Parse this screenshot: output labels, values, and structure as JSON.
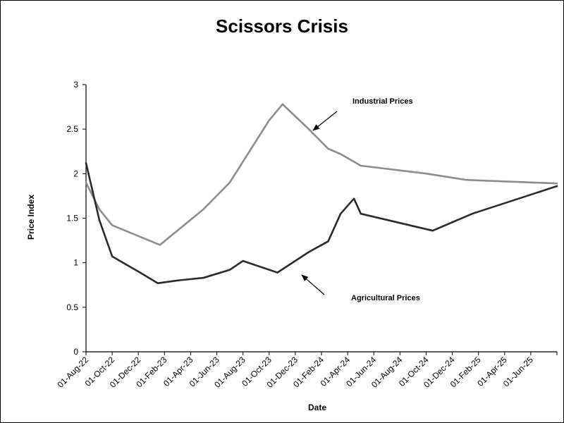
{
  "chart_data": {
    "type": "line",
    "title": "Scissors Crisis",
    "xlabel": "Date",
    "ylabel": "Price Index",
    "ylim": [
      0,
      3
    ],
    "yticks": [
      "0",
      "0.5",
      "1",
      "1.5",
      "2",
      "2.5",
      "3"
    ],
    "xticks": [
      "01-Aug-22",
      "01-Oct-22",
      "01-Dec-22",
      "01-Feb-23",
      "01-Apr-23",
      "01-Jun-23",
      "01-Aug-23",
      "01-Oct-23",
      "01-Dec-23",
      "01-Feb-24",
      "01-Apr-24",
      "01-Jun-24",
      "01-Aug-24",
      "01-Oct-24",
      "01-Dec-24",
      "01-Feb-25",
      "01-Apr-25",
      "01-Jun-25"
    ],
    "grid": false,
    "legend": "none",
    "series": [
      {
        "name": "Industrial Prices",
        "color": "#8c8c8c",
        "points": [
          {
            "x": "2022-08-01",
            "y": 1.9
          },
          {
            "x": "2022-09-01",
            "y": 1.6
          },
          {
            "x": "2022-10-01",
            "y": 1.42
          },
          {
            "x": "2023-01-20",
            "y": 1.2
          },
          {
            "x": "2023-05-01",
            "y": 1.6
          },
          {
            "x": "2023-07-01",
            "y": 1.9
          },
          {
            "x": "2023-10-01",
            "y": 2.6
          },
          {
            "x": "2023-11-01",
            "y": 2.78
          },
          {
            "x": "2024-01-01",
            "y": 2.5
          },
          {
            "x": "2024-02-15",
            "y": 2.28
          },
          {
            "x": "2024-03-15",
            "y": 2.22
          },
          {
            "x": "2024-05-01",
            "y": 2.09
          },
          {
            "x": "2024-10-01",
            "y": 2.0
          },
          {
            "x": "2025-01-01",
            "y": 1.93
          },
          {
            "x": "2025-07-31",
            "y": 1.89
          }
        ]
      },
      {
        "name": "Agricultural Prices",
        "color": "#2a2a2a",
        "points": [
          {
            "x": "2022-08-01",
            "y": 2.12
          },
          {
            "x": "2022-09-01",
            "y": 1.48
          },
          {
            "x": "2022-10-01",
            "y": 1.07
          },
          {
            "x": "2022-12-01",
            "y": 0.9
          },
          {
            "x": "2023-01-15",
            "y": 0.77
          },
          {
            "x": "2023-03-01",
            "y": 0.8
          },
          {
            "x": "2023-05-01",
            "y": 0.83
          },
          {
            "x": "2023-07-01",
            "y": 0.92
          },
          {
            "x": "2023-08-01",
            "y": 1.02
          },
          {
            "x": "2023-10-20",
            "y": 0.89
          },
          {
            "x": "2024-01-01",
            "y": 1.12
          },
          {
            "x": "2024-02-15",
            "y": 1.24
          },
          {
            "x": "2024-03-15",
            "y": 1.55
          },
          {
            "x": "2024-04-15",
            "y": 1.72
          },
          {
            "x": "2024-05-01",
            "y": 1.55
          },
          {
            "x": "2024-10-15",
            "y": 1.36
          },
          {
            "x": "2025-01-15",
            "y": 1.55
          },
          {
            "x": "2025-07-31",
            "y": 1.86
          }
        ]
      }
    ],
    "annotations": [
      {
        "text": "Industrial Prices",
        "target_series": 0
      },
      {
        "text": "Agricultural Prices",
        "target_series": 1
      }
    ]
  }
}
